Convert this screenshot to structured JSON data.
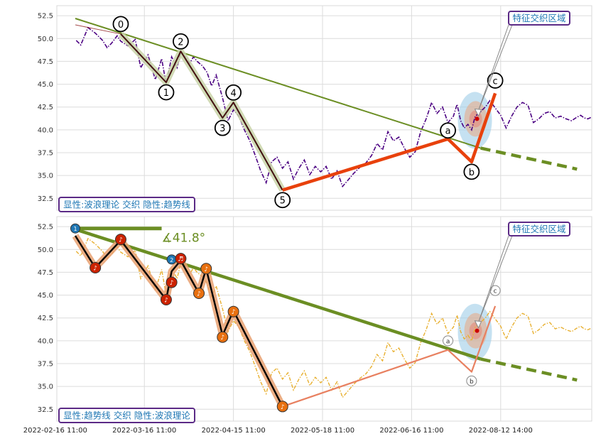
{
  "chart_data": [
    {
      "type": "line",
      "panel": "top",
      "ylim": [
        31.2,
        53.6
      ],
      "yticks": [
        "52.5",
        "50.0",
        "47.5",
        "45.0",
        "42.5",
        "40.0",
        "37.5",
        "35.0",
        "32.5"
      ],
      "ytick_values": [
        52.5,
        50.0,
        47.5,
        45.0,
        42.5,
        40.0,
        37.5,
        35.0,
        32.5
      ],
      "legend_label": "显性:波浪理论 交织 隐性:趋势线",
      "annotation": "特征交织区域",
      "series": [
        {
          "role": "price",
          "color": "#4b0082",
          "style": "dashdot",
          "x": [
            1,
            6,
            14,
            22,
            30,
            35,
            40,
            46,
            50,
            58,
            66,
            72,
            80,
            88,
            95,
            100,
            106,
            112,
            116,
            122,
            126,
            130,
            134,
            140,
            145,
            150,
            155,
            162,
            168,
            174,
            180,
            186,
            192,
            198,
            204,
            210,
            216,
            222,
            228,
            234,
            240,
            246,
            252,
            258,
            264,
            270,
            276,
            282,
            288,
            294,
            300,
            306,
            312,
            320,
            326,
            332,
            338,
            344,
            350,
            356,
            362,
            368,
            374,
            380,
            386,
            392,
            398,
            404,
            410,
            416,
            420,
            424,
            428,
            432,
            436,
            440,
            444,
            448,
            452,
            456,
            462,
            468,
            474,
            480,
            486,
            492,
            498,
            504,
            510,
            516,
            522,
            528,
            534,
            540,
            546,
            552,
            556,
            560,
            564,
            568
          ],
          "y": [
            49.8,
            49.3,
            51.2,
            50.6,
            49.8,
            49.0,
            49.5,
            50.3,
            49.7,
            49.2,
            49.9,
            46.8,
            48.2,
            45.5,
            47.8,
            45.0,
            48.0,
            46.8,
            48.5,
            47.9,
            47.3,
            48.0,
            47.5,
            47.0,
            46.3,
            44.8,
            46.0,
            43.5,
            41.0,
            42.2,
            41.5,
            40.0,
            38.8,
            37.2,
            35.5,
            34.2,
            36.5,
            37.0,
            35.8,
            36.5,
            34.6,
            35.8,
            36.7,
            35.1,
            36.0,
            35.4,
            36.0,
            34.6,
            35.5,
            33.8,
            34.5,
            35.2,
            35.8,
            36.4,
            37.2,
            38.5,
            37.8,
            39.8,
            38.8,
            39.2,
            38.0,
            37.0,
            37.6,
            39.8,
            41.2,
            43.0,
            41.8,
            42.5,
            40.8,
            41.5,
            42.8,
            41.0,
            40.2,
            40.6,
            40.0,
            41.5,
            41.8,
            42.2,
            42.6,
            43.2,
            42.4,
            41.6,
            40.2,
            41.5,
            42.5,
            43.0,
            42.7,
            40.8,
            41.2,
            41.8,
            42.0,
            41.3,
            41.5,
            41.2,
            41.0,
            41.4,
            41.6,
            41.3,
            41.2,
            41.4
          ]
        },
        {
          "role": "wave-thin",
          "color": "#800000",
          "x": [
            0,
            50,
            100,
            116,
            162,
            174,
            228
          ],
          "y": [
            51.5,
            50.5,
            45.2,
            48.6,
            41.3,
            43.0,
            33.4
          ]
        }
      ],
      "trendline": {
        "color": "#6b8e23",
        "from": [
          0,
          52.2
        ],
        "to": [
          446,
          38.0
        ],
        "dashed_to": [
          552,
          35.7
        ]
      },
      "wave_points": [
        {
          "label": "0",
          "x": 50,
          "y": 50.5
        },
        {
          "label": "1",
          "x": 100,
          "y": 45.2
        },
        {
          "label": "2",
          "x": 116,
          "y": 48.6
        },
        {
          "label": "3",
          "x": 162,
          "y": 41.3
        },
        {
          "label": "4",
          "x": 174,
          "y": 43.0
        },
        {
          "label": "5",
          "x": 228,
          "y": 33.4
        },
        {
          "label": "a",
          "x": 410,
          "y": 39.0
        },
        {
          "label": "b",
          "x": 436,
          "y": 36.5
        },
        {
          "label": "c",
          "x": 462,
          "y": 44.0
        }
      ],
      "corrective_path": {
        "color": "#e8410c",
        "x": [
          228,
          410,
          436,
          462
        ],
        "y": [
          33.4,
          39.0,
          36.5,
          44.0
        ]
      },
      "intersection_point": {
        "x": 442,
        "y": 41.2
      }
    },
    {
      "type": "line",
      "panel": "bottom",
      "ylim": [
        31.2,
        53.6
      ],
      "yticks": [
        "52.5",
        "50.0",
        "47.5",
        "45.0",
        "42.5",
        "40.0",
        "37.5",
        "35.0",
        "32.5"
      ],
      "ytick_values": [
        52.5,
        50.0,
        47.5,
        45.0,
        42.5,
        40.0,
        37.5,
        35.0,
        32.5
      ],
      "legend_label": "显性:趋势线 交织 隐性:波浪理论",
      "annotation": "特征交织区域",
      "angle_label": "∡41.8°",
      "xticks": [
        "2022-02-16 11:00",
        "2022-03-16 11:00",
        "2022-04-15 11:00",
        "2022-05-18 11:00",
        "2022-06-16 11:00",
        "2022-08-12 14:00"
      ],
      "xtick_positions": [
        -22,
        76,
        174,
        272,
        370,
        468
      ],
      "series": [
        {
          "role": "price",
          "color": "#e8b030",
          "style": "dashdot"
        }
      ],
      "trendline": {
        "color": "#6b8e23",
        "from": [
          0,
          52.2
        ],
        "to": [
          446,
          38.0
        ],
        "dashed_to": [
          552,
          35.7
        ]
      },
      "horizontal_line": {
        "color": "#6b8e23",
        "from": [
          0,
          52.3
        ],
        "to": [
          95,
          52.3
        ]
      },
      "wave_path": {
        "color": "#000000",
        "halo": "#e8a070",
        "x": [
          0,
          22,
          50,
          100,
          106,
          116,
          136,
          144,
          162,
          174,
          228
        ],
        "y": [
          51.5,
          48.0,
          51.0,
          44.5,
          47.6,
          48.8,
          45.2,
          47.9,
          40.6,
          43.3,
          32.8
        ]
      },
      "corrective_path": {
        "color": "#e88060",
        "x": [
          228,
          410,
          436,
          462
        ],
        "y": [
          32.8,
          39.0,
          36.6,
          43.8
        ]
      },
      "markers": [
        {
          "glyph": "1",
          "color": "#1f77b4",
          "x": 0,
          "y": 52.3
        },
        {
          "glyph": "2",
          "color": "#1f77b4",
          "x": 106,
          "y": 48.9
        },
        {
          "glyph": "♪",
          "color": "#cc2200",
          "x": 22,
          "y": 48.0
        },
        {
          "glyph": "♪",
          "color": "#cc2200",
          "x": 50,
          "y": 51.1
        },
        {
          "glyph": "♪",
          "color": "#cc2200",
          "x": 100,
          "y": 44.5
        },
        {
          "glyph": "♪",
          "color": "#cc2200",
          "x": 106,
          "y": 46.4
        },
        {
          "glyph": "♬",
          "color": "#cc2200",
          "x": 116,
          "y": 49.0
        },
        {
          "glyph": "♪",
          "color": "#e87010",
          "x": 136,
          "y": 45.2
        },
        {
          "glyph": "♪",
          "color": "#e87010",
          "x": 144,
          "y": 47.9
        },
        {
          "glyph": "♪",
          "color": "#e87010",
          "x": 162,
          "y": 40.4
        },
        {
          "glyph": "♪",
          "color": "#e87010",
          "x": 174,
          "y": 43.2
        },
        {
          "glyph": "♪",
          "color": "#e87010",
          "x": 228,
          "y": 32.8
        }
      ],
      "wave_points": [
        {
          "label": "a",
          "x": 410,
          "y": 40.0
        },
        {
          "label": "b",
          "x": 436,
          "y": 35.6
        },
        {
          "label": "c",
          "x": 462,
          "y": 45.5
        }
      ],
      "intersection_point": {
        "x": 442,
        "y": 41.1
      }
    }
  ]
}
